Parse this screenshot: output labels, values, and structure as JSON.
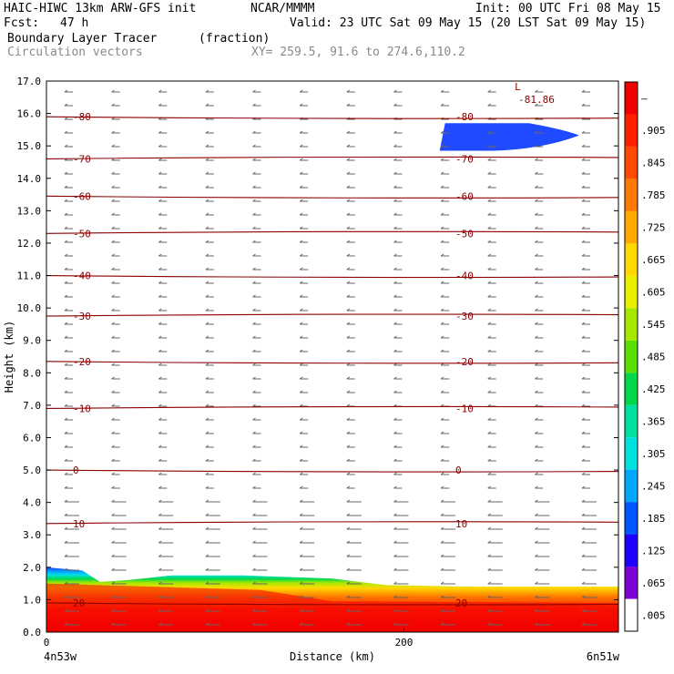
{
  "header": {
    "title": "HAIC-HIWC 13km ARW-GFS init",
    "org": "NCAR/MMMM",
    "init": "Init: 00 UTC Fri 08 May 15",
    "fcst_label": "Fcst:",
    "fcst_value": "47 h",
    "valid": "Valid: 23 UTC Sat 09 May 15 (20 LST Sat 09 May 15)",
    "field1": "Boundary Layer Tracer",
    "field1_units": "(fraction)",
    "field2": "Circulation vectors",
    "xy": "XY= 259.5, 91.6 to 274.6,110.2"
  },
  "chart_data": {
    "type": "heatmap",
    "ylabel": "Height (km)",
    "xlabel": "Distance (km)",
    "x_left_label": "4n53w",
    "x_right_label": "6n51w",
    "x_ticks": [
      0,
      200
    ],
    "xlim": [
      0,
      320
    ],
    "ylim": [
      0,
      17
    ],
    "y_ticks": [
      "0.0",
      "1.0",
      "2.0",
      "3.0",
      "4.0",
      "5.0",
      "6.0",
      "7.0",
      "8.0",
      "9.0",
      "10.0",
      "11.0",
      "12.0",
      "13.0",
      "14.0",
      "15.0",
      "16.0",
      "17.0"
    ],
    "temperature_contours": [
      {
        "label": "20",
        "height": 0.9
      },
      {
        "label": "10",
        "height": 3.35
      },
      {
        "label": "0",
        "height": 5.0
      },
      {
        "label": "-10",
        "height": 6.9
      },
      {
        "label": "-20",
        "height": 8.35
      },
      {
        "label": "-30",
        "height": 9.75
      },
      {
        "label": "-40",
        "height": 11.0
      },
      {
        "label": "-50",
        "height": 12.3
      },
      {
        "label": "-60",
        "height": 13.45
      },
      {
        "label": "-70",
        "height": 14.6
      },
      {
        "label": "-80",
        "height": 15.9
      }
    ],
    "minimum_marker": {
      "symbol": "L",
      "value": "-81.86",
      "x": 262,
      "height": 16.6
    },
    "tracer_layer": {
      "top_height": [
        [
          0,
          2.0
        ],
        [
          20,
          1.9
        ],
        [
          30,
          1.55
        ],
        [
          45,
          1.6
        ],
        [
          70,
          1.75
        ],
        [
          110,
          1.75
        ],
        [
          160,
          1.65
        ],
        [
          190,
          1.45
        ],
        [
          240,
          1.4
        ],
        [
          320,
          1.4
        ]
      ],
      "core_top_height": [
        [
          0,
          1.5
        ],
        [
          60,
          1.4
        ],
        [
          120,
          1.3
        ],
        [
          160,
          0.95
        ],
        [
          320,
          0.9
        ]
      ]
    },
    "upper_tracer_blob": {
      "x_start": 220,
      "x_end": 298,
      "bottom": 14.85,
      "top": 15.7
    },
    "colorbar": {
      "labels": [
        ".005",
        ".065",
        ".125",
        ".185",
        ".245",
        ".305",
        ".365",
        ".425",
        ".485",
        ".545",
        ".605",
        ".665",
        ".725",
        ".785",
        ".845",
        ".905",
        "–"
      ],
      "colors": [
        "#ffffff",
        "#7d00d4",
        "#1f00ff",
        "#0056ff",
        "#00a8ff",
        "#00e0e0",
        "#00e0a0",
        "#00d84a",
        "#5ae000",
        "#a8e800",
        "#e8f000",
        "#ffd800",
        "#ffaa00",
        "#ff7a00",
        "#ff4a00",
        "#ff2000",
        "#f00000"
      ]
    }
  }
}
